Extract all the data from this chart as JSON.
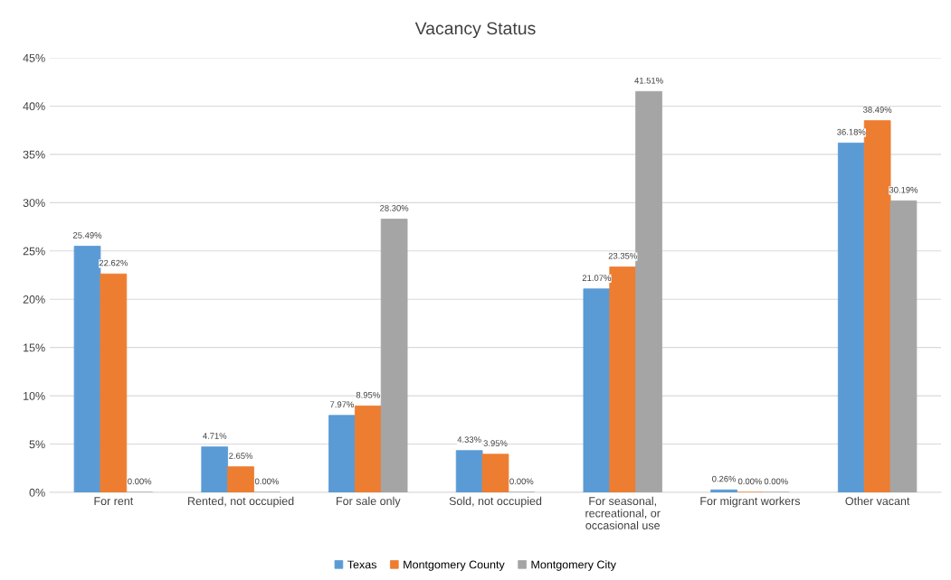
{
  "chart_data": {
    "type": "bar",
    "title": "Vacancy Status",
    "categories": [
      "For rent",
      "Rented, not occupied",
      "For sale only",
      "Sold, not occupied",
      "For seasonal,\nrecreational, or\noccasional use",
      "For migrant workers",
      "Other vacant"
    ],
    "series": [
      {
        "name": "Texas",
        "color": "#5b9bd5",
        "values": [
          25.49,
          4.71,
          7.97,
          4.33,
          21.07,
          0.26,
          36.18
        ],
        "value_labels": [
          "25.49%",
          "4.71%",
          "7.97%",
          "4.33%",
          "21.07%",
          "0.26%",
          "36.18%"
        ]
      },
      {
        "name": "Montgomery County",
        "color": "#ed7d31",
        "values": [
          22.62,
          2.65,
          8.95,
          3.95,
          23.35,
          0.0,
          38.49
        ],
        "value_labels": [
          "22.62%",
          "2.65%",
          "8.95%",
          "3.95%",
          "23.35%",
          "0.00%",
          "38.49%"
        ]
      },
      {
        "name": "Montgomery City",
        "color": "#a5a5a5",
        "values": [
          0.0,
          0.0,
          28.3,
          0.0,
          41.51,
          0.0,
          30.19
        ],
        "value_labels": [
          "0.00%",
          "0.00%",
          "28.30%",
          "0.00%",
          "41.51%",
          "0.00%",
          "30.19%"
        ]
      }
    ],
    "ylim": [
      0,
      45
    ],
    "yticks": [
      {
        "value": 0,
        "label": "0%"
      },
      {
        "value": 5,
        "label": "5%"
      },
      {
        "value": 10,
        "label": "10%"
      },
      {
        "value": 15,
        "label": "15%"
      },
      {
        "value": 20,
        "label": "20%"
      },
      {
        "value": 25,
        "label": "25%"
      },
      {
        "value": 30,
        "label": "30%"
      },
      {
        "value": 35,
        "label": "35%"
      },
      {
        "value": 40,
        "label": "40%"
      },
      {
        "value": 45,
        "label": "45%"
      }
    ],
    "grid": "y",
    "legend": "bottom"
  }
}
